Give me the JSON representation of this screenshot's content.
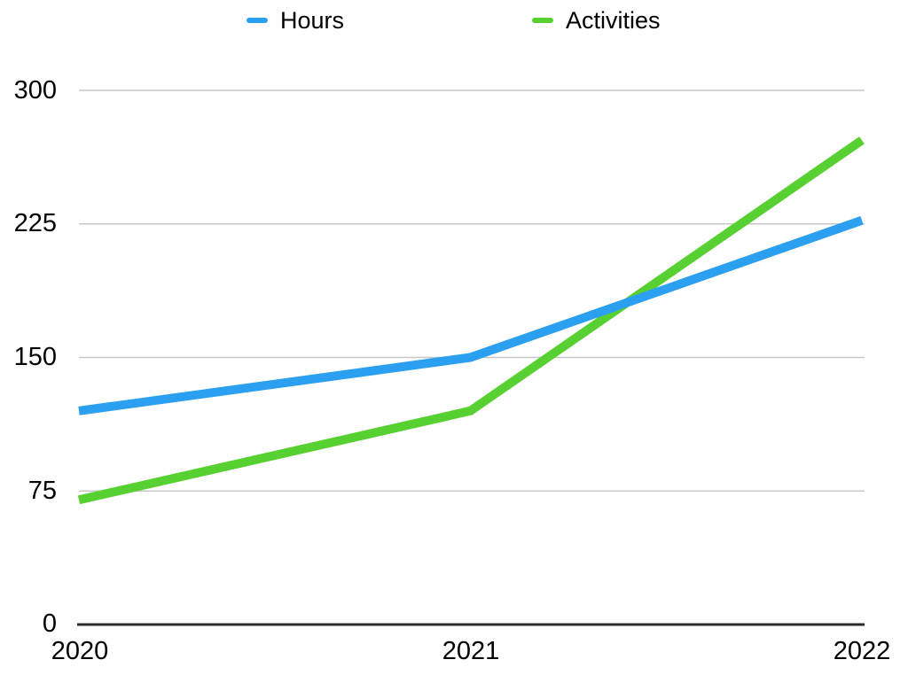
{
  "chart_data": {
    "type": "line",
    "x": [
      "2020",
      "2021",
      "2022"
    ],
    "series": [
      {
        "name": "Hours",
        "color": "#2B9FF0",
        "values": [
          120,
          150,
          227
        ]
      },
      {
        "name": "Activities",
        "color": "#57D131",
        "values": [
          70,
          120,
          272
        ]
      }
    ],
    "title": "",
    "xlabel": "",
    "ylabel": "",
    "ylim": [
      0,
      300
    ],
    "yticks": [
      0,
      75,
      150,
      225,
      300
    ],
    "ytick_labels_top_to_bottom": [
      "300",
      "225",
      "150",
      "75",
      "0"
    ],
    "grid": true,
    "legend_position": "top",
    "colors": {
      "gridline": "#C7C7C7",
      "axis": "#2B2B2B",
      "text": "#000000",
      "background": "#FFFFFF"
    }
  }
}
